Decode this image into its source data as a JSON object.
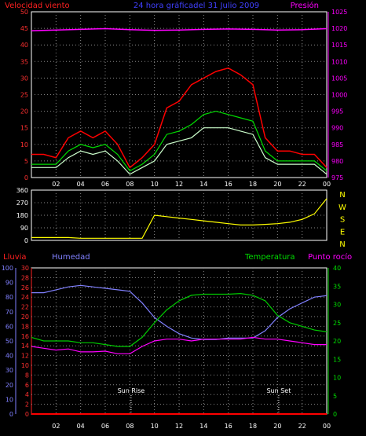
{
  "top_panel": {
    "left_title": "Velocidad viento",
    "center_title": "24 hora gráficadel  31 Julio 2009",
    "right_title": "Presión"
  },
  "bottom_panel": {
    "label_rain": "Lluvia",
    "label_humidity": "Humedad",
    "label_temperature": "Temperatura",
    "label_dewpoint": "Punto rocío",
    "sunrise_label": "Sun Rise",
    "sunset_label": "Sun Set"
  },
  "colors": {
    "wind_gust": "#ff0000",
    "wind_avg": "#00dd00",
    "wind_speed": "#ccffcc",
    "pressure": "#ff00ff",
    "direction": "#ffff00",
    "rain": "#ff0000",
    "humidity": "#8080ff",
    "temperature": "#00cc00",
    "dewpoint": "#ff00ff"
  },
  "chart_data": [
    {
      "type": "line",
      "x_ticks": [
        "02",
        "04",
        "06",
        "08",
        "10",
        "12",
        "14",
        "16",
        "18",
        "20",
        "22",
        "00"
      ],
      "y_left_ticks": [
        "0",
        "5",
        "10",
        "15",
        "20",
        "25",
        "30",
        "35",
        "40",
        "45",
        "50"
      ],
      "y_left_range": [
        0,
        50
      ],
      "y_right_ticks": [
        "975",
        "980",
        "985",
        "990",
        "995",
        "1000",
        "1005",
        "1010",
        "1015",
        "1020",
        "1025"
      ],
      "y_right_range": [
        975,
        1025
      ],
      "series": [
        {
          "key": "gust",
          "hours": [
            0,
            1,
            2,
            3,
            4,
            5,
            6,
            7,
            8,
            9,
            10,
            11,
            12,
            13,
            14,
            15,
            16,
            17,
            18,
            19,
            20,
            21,
            22,
            23,
            24
          ],
          "values": [
            7,
            7,
            6,
            12,
            14,
            12,
            14,
            10,
            3,
            6,
            10,
            21,
            23,
            28,
            30,
            32,
            33,
            31,
            28,
            12,
            8,
            8,
            7,
            7,
            3
          ]
        },
        {
          "key": "average",
          "hours": [
            0,
            1,
            2,
            3,
            4,
            5,
            6,
            7,
            8,
            9,
            10,
            11,
            12,
            13,
            14,
            15,
            16,
            17,
            18,
            19,
            20,
            21,
            22,
            23,
            24
          ],
          "values": [
            4,
            4,
            4,
            8,
            10,
            9,
            10,
            7,
            2,
            4,
            7,
            13,
            14,
            16,
            19,
            20,
            19,
            18,
            17,
            8,
            5,
            5,
            5,
            5,
            2
          ]
        },
        {
          "key": "speed",
          "hours": [
            0,
            1,
            2,
            3,
            4,
            5,
            6,
            7,
            8,
            9,
            10,
            11,
            12,
            13,
            14,
            15,
            16,
            17,
            18,
            19,
            20,
            21,
            22,
            23,
            24
          ],
          "values": [
            3,
            3,
            3,
            6,
            8,
            7,
            8,
            5,
            1,
            3,
            5,
            10,
            11,
            12,
            15,
            15,
            15,
            14,
            13,
            6,
            4,
            4,
            4,
            4,
            1
          ]
        },
        {
          "key": "pressure",
          "hours": [
            0,
            2,
            4,
            6,
            8,
            10,
            12,
            14,
            16,
            18,
            20,
            22,
            24
          ],
          "values": [
            1019.3,
            1019.5,
            1019.7,
            1019.9,
            1019.6,
            1019.4,
            1019.5,
            1019.7,
            1019.8,
            1019.7,
            1019.5,
            1019.6,
            1019.9
          ]
        }
      ]
    },
    {
      "type": "line",
      "right_labels": [
        "N",
        "W",
        "S",
        "E",
        "N"
      ],
      "y_ticks": [
        "0",
        "90",
        "180",
        "270",
        "360"
      ],
      "y_range": [
        0,
        360
      ],
      "series": [
        {
          "key": "direction",
          "hours": [
            0,
            1,
            2,
            3,
            4,
            5,
            6,
            7,
            8,
            9,
            10,
            11,
            12,
            13,
            14,
            15,
            16,
            17,
            18,
            19,
            20,
            21,
            22,
            23,
            24
          ],
          "values": [
            20,
            20,
            20,
            20,
            15,
            15,
            15,
            15,
            15,
            15,
            180,
            170,
            160,
            150,
            140,
            130,
            120,
            110,
            110,
            115,
            120,
            130,
            150,
            190,
            300
          ]
        }
      ]
    },
    {
      "type": "line",
      "x_ticks": [
        "02",
        "04",
        "06",
        "08",
        "10",
        "12",
        "14",
        "16",
        "18",
        "20",
        "22",
        "00"
      ],
      "y_humidity_ticks": [
        "0",
        "10",
        "20",
        "30",
        "40",
        "50",
        "60",
        "70",
        "80",
        "90",
        "100"
      ],
      "y_humidity_range": [
        0,
        100
      ],
      "y_rain_ticks": [
        "0",
        "2",
        "4",
        "6",
        "8",
        "10",
        "12",
        "14",
        "16",
        "18",
        "20",
        "22",
        "24",
        "26",
        "28",
        "30"
      ],
      "y_rain_range": [
        0,
        30
      ],
      "y_temp_ticks": [
        "0",
        "5",
        "10",
        "15",
        "20",
        "25",
        "30",
        "35",
        "40"
      ],
      "y_temp_range": [
        0,
        40
      ],
      "series": [
        {
          "key": "humidity",
          "hours": [
            0,
            1,
            2,
            3,
            4,
            5,
            6,
            7,
            8,
            9,
            10,
            11,
            12,
            13,
            14,
            15,
            16,
            17,
            18,
            19,
            20,
            21,
            22,
            23,
            24
          ],
          "values": [
            83,
            83,
            85,
            87,
            88,
            87,
            86,
            85,
            84,
            76,
            66,
            60,
            55,
            52,
            51,
            51,
            52,
            52,
            52,
            57,
            66,
            72,
            76,
            80,
            81
          ]
        },
        {
          "key": "temperature",
          "hours": [
            0,
            1,
            2,
            3,
            4,
            5,
            6,
            7,
            8,
            9,
            10,
            11,
            12,
            13,
            14,
            15,
            16,
            17,
            18,
            19,
            20,
            21,
            22,
            23,
            24
          ],
          "values": [
            21,
            20,
            20,
            20,
            19.5,
            19.5,
            19,
            18.5,
            18.5,
            21,
            25,
            28.5,
            31,
            32.5,
            32.8,
            32.8,
            32.8,
            33,
            32.5,
            31,
            27,
            25,
            24,
            23,
            22.5
          ]
        },
        {
          "key": "dewpoint",
          "hours": [
            0,
            1,
            2,
            3,
            4,
            5,
            6,
            7,
            8,
            9,
            10,
            11,
            12,
            13,
            14,
            15,
            16,
            17,
            18,
            19,
            20,
            21,
            22,
            23,
            24
          ],
          "values": [
            18.5,
            18,
            17.5,
            17.8,
            17,
            17,
            17.2,
            16.5,
            16.5,
            18.5,
            20,
            20.5,
            20.5,
            20,
            20.5,
            20.5,
            20.5,
            20.5,
            21,
            20.5,
            20.5,
            20,
            19.5,
            19,
            19
          ]
        },
        {
          "key": "rain",
          "hours": [
            0,
            24
          ],
          "values": [
            0,
            0
          ]
        }
      ],
      "sunrise_hour": 8.1,
      "sunset_hour": 20.1
    }
  ]
}
